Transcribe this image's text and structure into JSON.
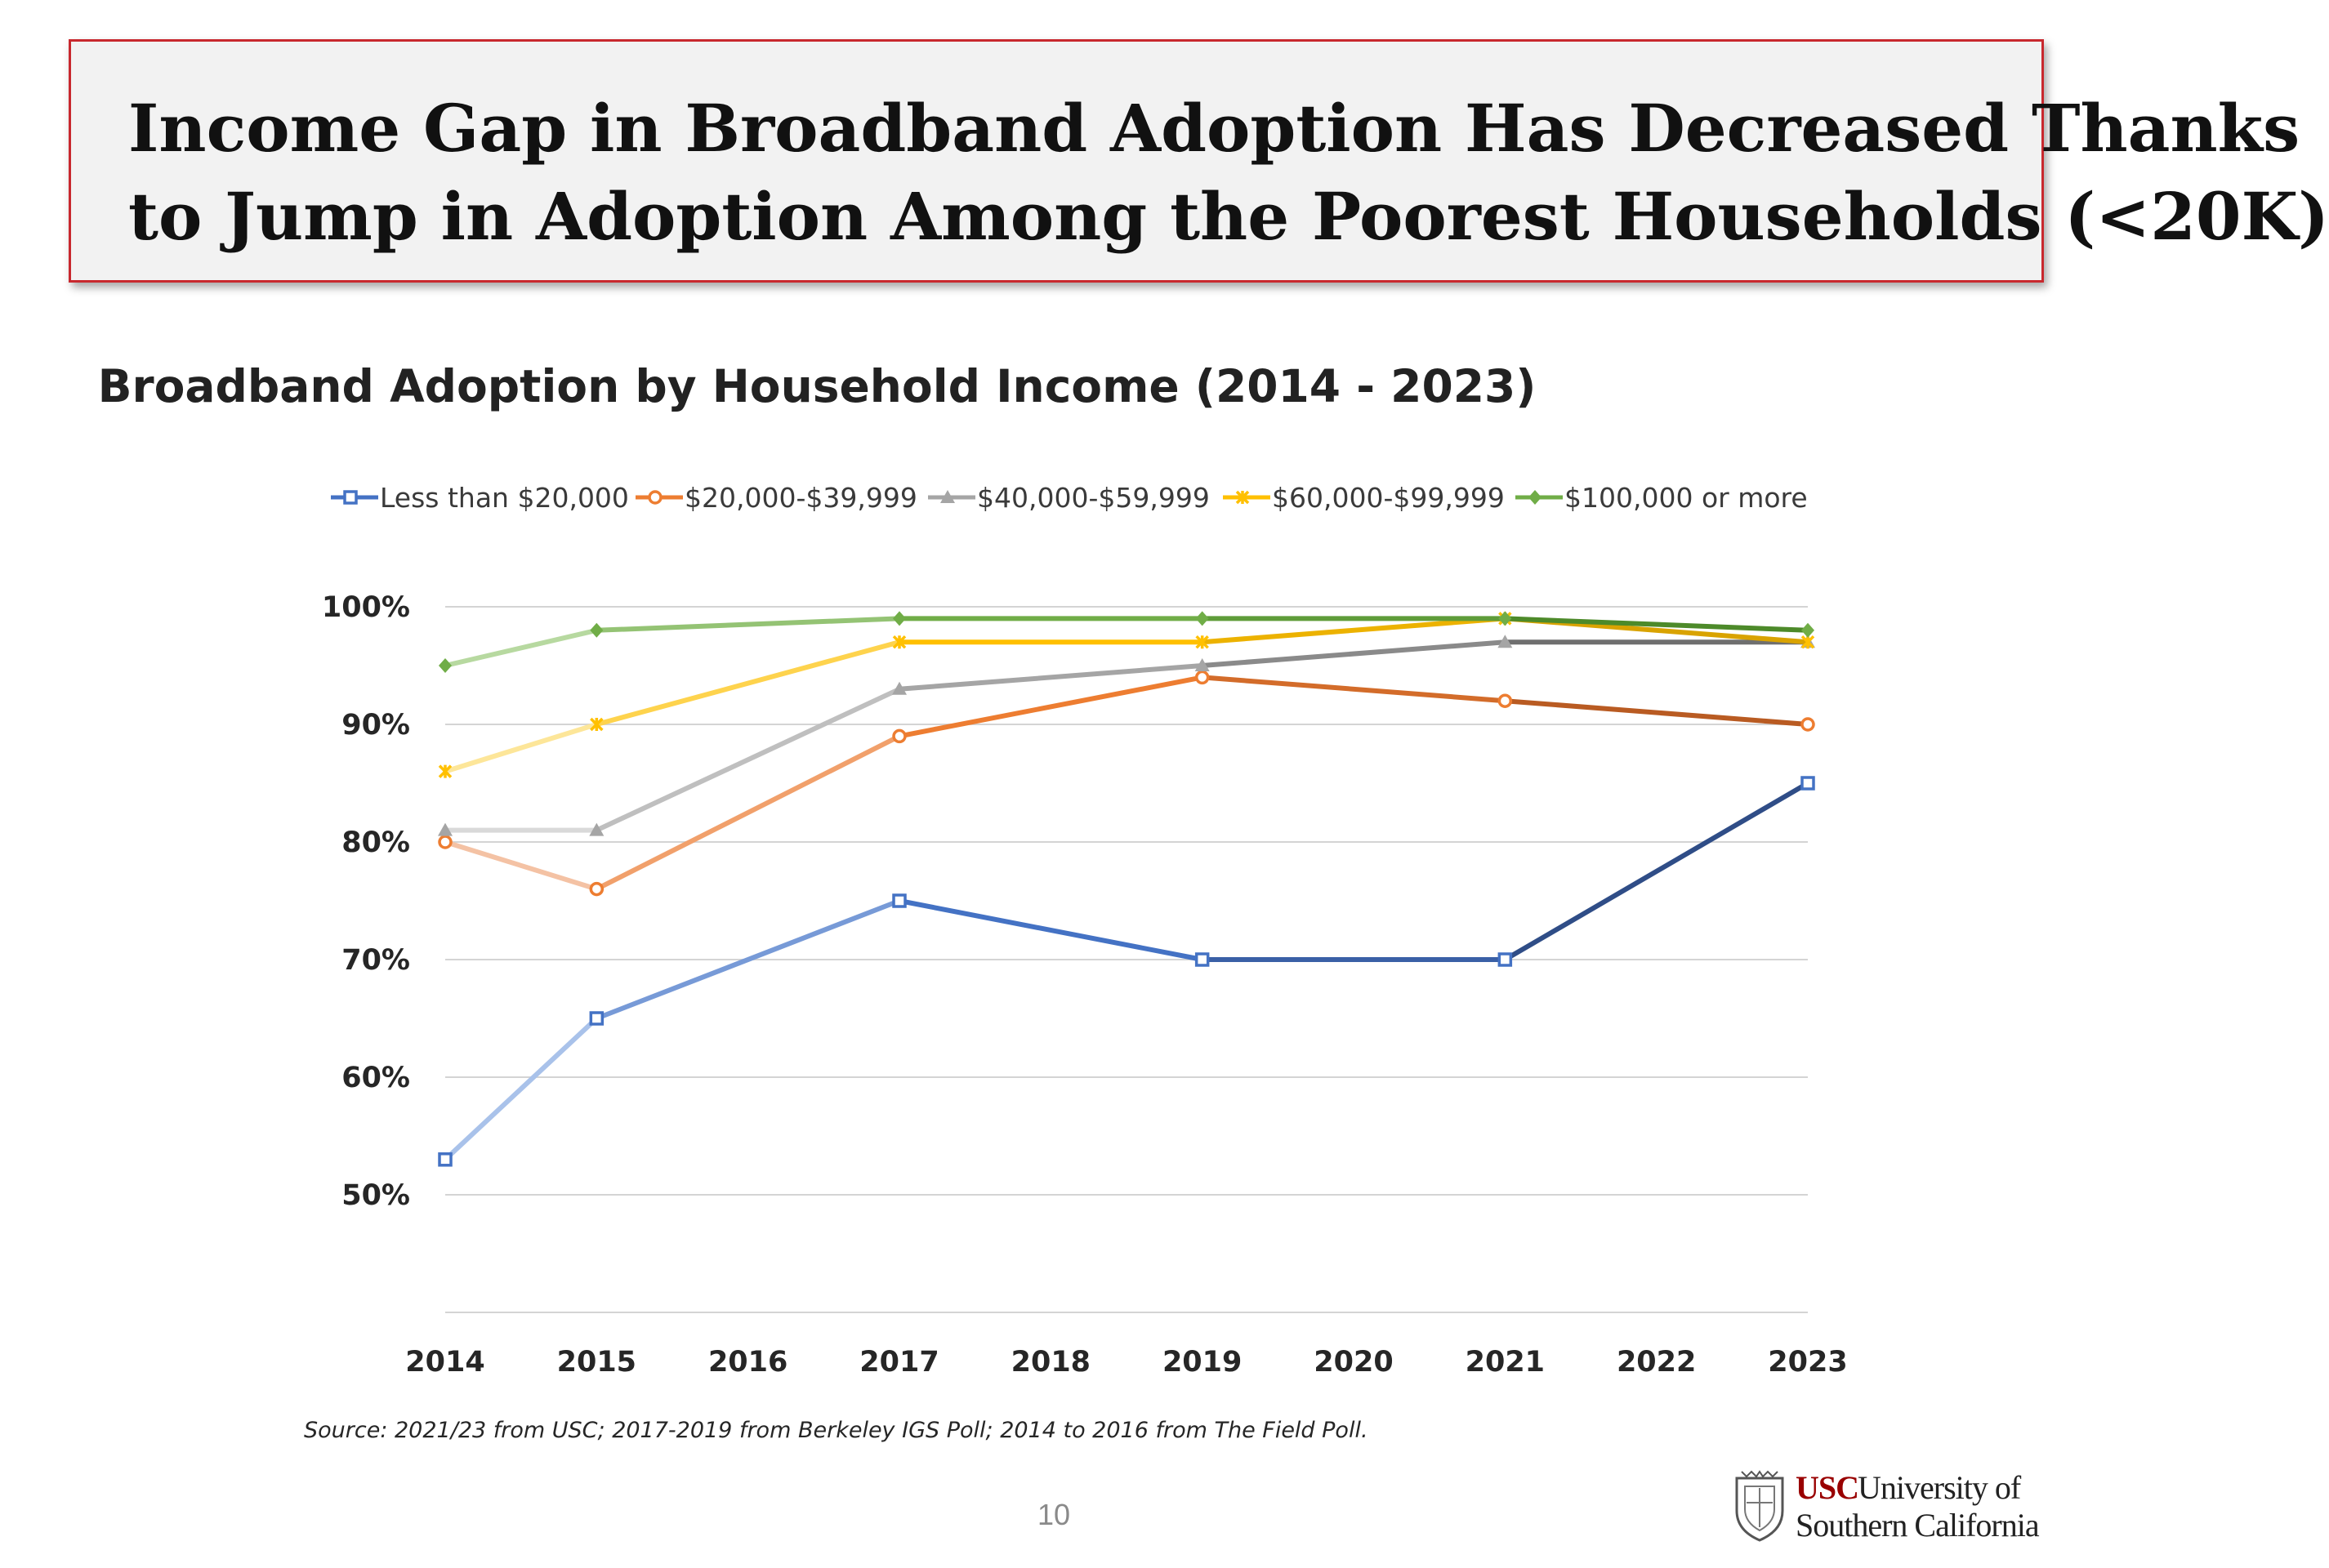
{
  "slide": {
    "headline_line1": "Income Gap in Broadband Adoption Has Decreased Thanks",
    "headline_line2": "to Jump in Adoption Among the Poorest Households (<20K)",
    "source": "Source: 2021/23 from USC; 2017-2019 from Berkeley IGS Poll; 2014 to 2016 from The Field Poll.",
    "page_number": "10",
    "logo": {
      "usc": "USC",
      "line1": "University of",
      "line2": "Southern California"
    }
  },
  "chart_data": {
    "type": "line",
    "title": "Broadband Adoption by Household Income (2014 - 2023)",
    "xlabel": "",
    "ylabel": "",
    "x": [
      "2014",
      "2015",
      "2016",
      "2017",
      "2018",
      "2019",
      "2020",
      "2021",
      "2022",
      "2023"
    ],
    "xlim": [
      2014,
      2023
    ],
    "ylim": [
      40,
      100
    ],
    "y_ticks": [
      "100%",
      "90%",
      "80%",
      "70%",
      "60%",
      "50%"
    ],
    "grid": "horizontal",
    "legend_position": "top",
    "series": [
      {
        "name": "Less than $20,000",
        "marker": "square",
        "color": "#4472c4",
        "color_light": "#a9c2ea",
        "color_dark": "#2f4d87",
        "points": [
          [
            2014,
            53
          ],
          [
            2015,
            65
          ],
          [
            2017,
            75
          ],
          [
            2019,
            70
          ],
          [
            2021,
            70
          ],
          [
            2023,
            85
          ]
        ]
      },
      {
        "name": "$20,000-$39,999",
        "marker": "circle",
        "color": "#ed7d31",
        "color_light": "#f4c2a4",
        "color_dark": "#b95b22",
        "points": [
          [
            2014,
            80
          ],
          [
            2015,
            76
          ],
          [
            2017,
            89
          ],
          [
            2019,
            94
          ],
          [
            2021,
            92
          ],
          [
            2023,
            90
          ]
        ]
      },
      {
        "name": "$40,000-$59,999",
        "marker": "triangle",
        "color": "#a5a5a5",
        "color_light": "#d9d9d9",
        "color_dark": "#6f6f6f",
        "points": [
          [
            2014,
            81
          ],
          [
            2015,
            81
          ],
          [
            2017,
            93
          ],
          [
            2019,
            95
          ],
          [
            2021,
            97
          ],
          [
            2023,
            97
          ]
        ]
      },
      {
        "name": "$60,000-$99,999",
        "marker": "star",
        "color": "#ffc000",
        "color_light": "#fde699",
        "color_dark": "#d9a300",
        "points": [
          [
            2014,
            86
          ],
          [
            2015,
            90
          ],
          [
            2017,
            97
          ],
          [
            2019,
            97
          ],
          [
            2021,
            99
          ],
          [
            2023,
            97
          ]
        ]
      },
      {
        "name": "$100,000 or more",
        "marker": "diamond",
        "color": "#70ad47",
        "color_light": "#b7d9a0",
        "color_dark": "#4d8a2a",
        "points": [
          [
            2014,
            95
          ],
          [
            2015,
            98
          ],
          [
            2017,
            99
          ],
          [
            2019,
            99
          ],
          [
            2021,
            99
          ],
          [
            2023,
            98
          ]
        ]
      }
    ]
  }
}
